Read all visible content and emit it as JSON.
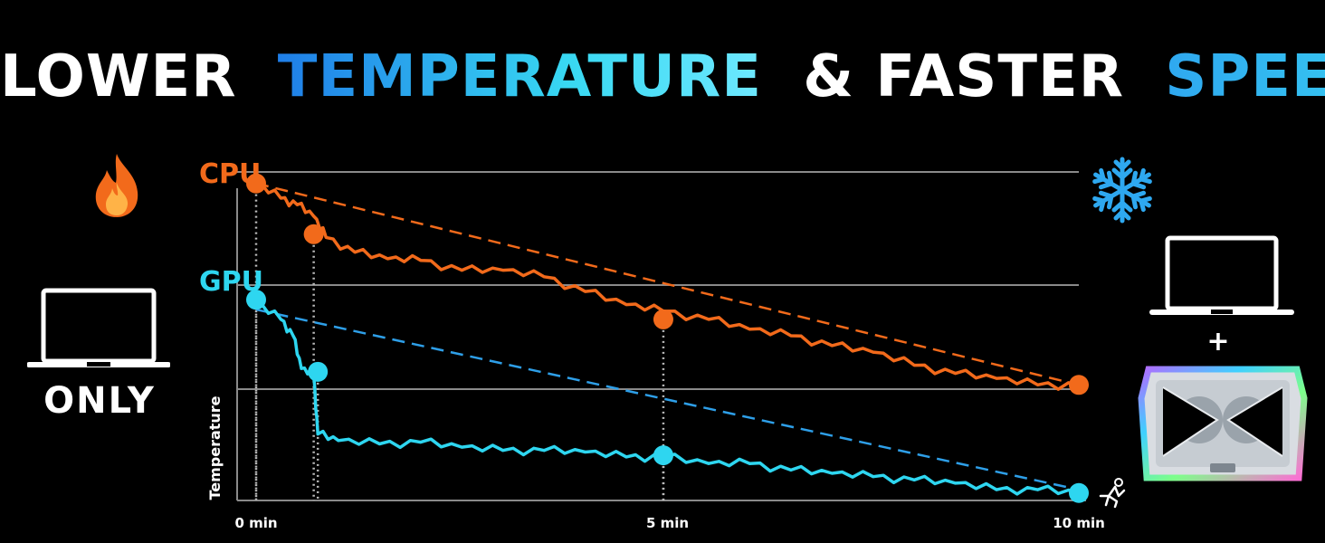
{
  "headline": {
    "part1": "LOWER",
    "part2": "TEMPERATURE",
    "part3": "& FASTER",
    "part4": "SPEED"
  },
  "left_panel": {
    "only_label": "ONLY",
    "icons": [
      "fire-icon",
      "laptop-icon"
    ]
  },
  "right_panel": {
    "plus": "+",
    "icons": [
      "snowflake-icon",
      "laptop-icon",
      "cooling-pad-icon"
    ]
  },
  "colors": {
    "cpu": "#f26a1b",
    "gpu": "#2ed6f0",
    "gpu_dashed": "#2e9fe8",
    "grid": "#8a8a8a",
    "background": "#000000"
  },
  "chart_data": {
    "type": "line",
    "ylabel": "Temperature",
    "x_ticks": [
      {
        "x": 0,
        "label": "0 min"
      },
      {
        "x": 5,
        "label": "5 min"
      },
      {
        "x": 10,
        "label": "10 min"
      }
    ],
    "xlim": [
      0,
      10
    ],
    "ylim": [
      0,
      100
    ],
    "grid": true,
    "series": [
      {
        "name": "CPU",
        "x": [
          0,
          0.3,
          0.5,
          0.7,
          0.85,
          1.2,
          1.6,
          2.0,
          2.5,
          3.0,
          3.5,
          4.0,
          4.5,
          4.95,
          5.5,
          6.0,
          6.5,
          7.0,
          7.5,
          8.0,
          8.5,
          9.0,
          9.5,
          10.0
        ],
        "values": [
          96.5,
          92,
          90,
          86.5,
          80,
          75.5,
          73.5,
          73,
          70,
          70,
          68,
          63.5,
          59.5,
          57.5,
          55,
          52,
          50,
          47,
          45,
          41,
          38.5,
          37,
          35,
          35
        ],
        "trend_values": [
          96.5,
          35
        ],
        "markers": [
          {
            "x": 0,
            "y": 96.5
          },
          {
            "x": 0.7,
            "y": 81
          },
          {
            "x": 4.95,
            "y": 55
          },
          {
            "x": 10.0,
            "y": 35
          }
        ]
      },
      {
        "name": "GPU",
        "x": [
          0,
          0.3,
          0.45,
          0.55,
          0.7,
          0.75,
          1.0,
          1.5,
          2.0,
          2.5,
          3.0,
          3.5,
          4.0,
          4.5,
          4.95,
          5.5,
          6.0,
          6.5,
          7.0,
          7.5,
          8.0,
          8.5,
          9.0,
          9.5,
          10.0
        ],
        "values": [
          60,
          55,
          50,
          40,
          38,
          20,
          18,
          17,
          17.5,
          16,
          15,
          15,
          14.5,
          13,
          13,
          11,
          11,
          9,
          8,
          7,
          6,
          5,
          3,
          3,
          2
        ],
        "trend_values": [
          58,
          3
        ],
        "markers": [
          {
            "x": 0,
            "y": 61
          },
          {
            "x": 0.75,
            "y": 39
          },
          {
            "x": 4.95,
            "y": 13.5
          },
          {
            "x": 10.0,
            "y": 2
          }
        ]
      }
    ]
  }
}
